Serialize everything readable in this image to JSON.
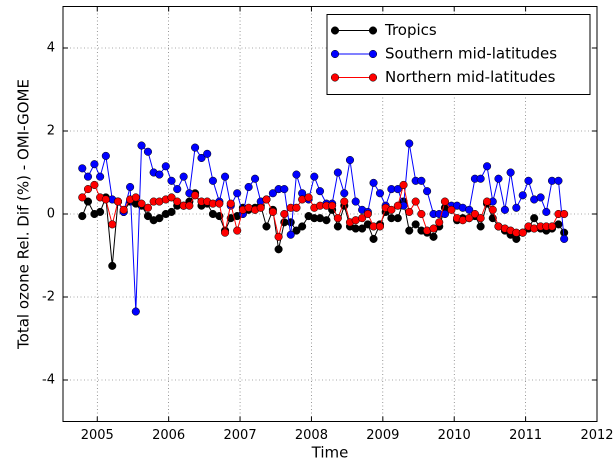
{
  "chart_data": {
    "type": "line",
    "xlabel": "Time",
    "ylabel": "Total ozone Rel. Dif (%) - OMI-GOME",
    "x": [
      2004.79,
      2004.87,
      2004.96,
      2005.04,
      2005.12,
      2005.21,
      2005.29,
      2005.37,
      2005.46,
      2005.54,
      2005.62,
      2005.71,
      2005.79,
      2005.87,
      2005.96,
      2006.04,
      2006.12,
      2006.21,
      2006.29,
      2006.37,
      2006.46,
      2006.54,
      2006.62,
      2006.71,
      2006.79,
      2006.87,
      2006.96,
      2007.04,
      2007.12,
      2007.21,
      2007.29,
      2007.37,
      2007.46,
      2007.54,
      2007.62,
      2007.71,
      2007.79,
      2007.87,
      2007.96,
      2008.04,
      2008.12,
      2008.21,
      2008.29,
      2008.37,
      2008.46,
      2008.54,
      2008.62,
      2008.71,
      2008.79,
      2008.87,
      2008.96,
      2009.04,
      2009.12,
      2009.21,
      2009.29,
      2009.37,
      2009.46,
      2009.54,
      2009.62,
      2009.71,
      2009.79,
      2009.87,
      2009.96,
      2010.04,
      2010.12,
      2010.21,
      2010.29,
      2010.37,
      2010.46,
      2010.54,
      2010.62,
      2010.71,
      2010.79,
      2010.87,
      2010.96,
      2011.04,
      2011.12,
      2011.21,
      2011.29,
      2011.37,
      2011.46,
      2011.54
    ],
    "series": [
      {
        "name": "Tropics",
        "color": "#000000",
        "values": [
          -0.05,
          0.3,
          0.0,
          0.05,
          0.4,
          -1.25,
          0.3,
          0.05,
          0.3,
          0.25,
          0.2,
          -0.05,
          -0.15,
          -0.1,
          0.0,
          0.05,
          0.2,
          0.2,
          0.3,
          0.5,
          0.2,
          0.25,
          0.0,
          -0.05,
          -0.4,
          -0.1,
          -0.05,
          0.15,
          0.1,
          0.15,
          0.2,
          -0.3,
          0.1,
          -0.85,
          -0.2,
          -0.2,
          -0.4,
          -0.3,
          -0.05,
          -0.1,
          -0.1,
          -0.15,
          0.1,
          -0.3,
          0.2,
          -0.3,
          -0.35,
          -0.35,
          -0.25,
          -0.6,
          -0.25,
          0.05,
          -0.1,
          -0.1,
          0.3,
          -0.4,
          -0.25,
          -0.4,
          -0.45,
          -0.55,
          -0.3,
          0.15,
          0.15,
          -0.15,
          -0.1,
          -0.1,
          -0.05,
          -0.3,
          0.25,
          -0.1,
          -0.3,
          -0.4,
          -0.5,
          -0.6,
          -0.45,
          -0.35,
          -0.1,
          -0.35,
          -0.4,
          -0.35,
          -0.25,
          -0.45
        ]
      },
      {
        "name": "Southern mid-latitudes",
        "color": "#0000ff",
        "values": [
          1.1,
          0.9,
          1.2,
          0.9,
          1.4,
          0.35,
          0.3,
          0.05,
          0.65,
          -2.35,
          1.65,
          1.5,
          1.0,
          0.95,
          1.15,
          0.8,
          0.6,
          0.9,
          0.5,
          1.6,
          1.35,
          1.45,
          0.8,
          0.3,
          0.9,
          0.2,
          0.5,
          0.0,
          0.65,
          0.85,
          0.3,
          0.35,
          0.5,
          0.6,
          0.6,
          -0.5,
          0.95,
          0.5,
          0.35,
          0.9,
          0.55,
          0.25,
          0.25,
          1.0,
          0.5,
          1.3,
          0.3,
          0.1,
          0.05,
          0.75,
          0.5,
          0.2,
          0.6,
          0.6,
          0.2,
          1.7,
          0.8,
          0.8,
          0.55,
          0.0,
          0.0,
          0.0,
          0.2,
          0.2,
          0.15,
          0.1,
          0.85,
          0.85,
          1.15,
          0.3,
          0.85,
          0.1,
          1.0,
          0.15,
          0.45,
          0.8,
          0.35,
          0.4,
          0.05,
          0.8,
          0.8,
          -0.6
        ]
      },
      {
        "name": "Northern mid-latitudes",
        "color": "#ff0000",
        "values": [
          0.4,
          0.6,
          0.7,
          0.4,
          0.35,
          -0.25,
          0.3,
          0.1,
          0.35,
          0.4,
          0.25,
          0.15,
          0.3,
          0.3,
          0.35,
          0.4,
          0.3,
          0.2,
          0.2,
          0.45,
          0.3,
          0.3,
          0.25,
          0.25,
          -0.45,
          0.25,
          -0.4,
          0.1,
          0.15,
          0.1,
          0.15,
          0.35,
          0.05,
          -0.55,
          0.0,
          0.15,
          0.15,
          0.35,
          0.4,
          0.15,
          0.2,
          0.2,
          0.2,
          -0.1,
          0.3,
          -0.2,
          -0.15,
          -0.1,
          0.0,
          -0.3,
          -0.3,
          0.15,
          0.1,
          0.2,
          0.7,
          0.05,
          0.3,
          0.0,
          -0.4,
          -0.35,
          -0.2,
          0.3,
          0.1,
          -0.1,
          -0.15,
          -0.1,
          0.0,
          -0.1,
          0.3,
          0.1,
          -0.3,
          -0.35,
          -0.4,
          -0.45,
          -0.45,
          -0.3,
          -0.35,
          -0.3,
          -0.3,
          -0.3,
          0.0,
          0.0
        ]
      }
    ],
    "xlim": [
      2004.52,
      2012
    ],
    "xticks": [
      2005,
      2006,
      2007,
      2008,
      2009,
      2010,
      2011,
      2012
    ],
    "ylim": [
      -5,
      5
    ],
    "yticks": [
      -4,
      -2,
      0,
      2,
      4
    ],
    "grid": true,
    "legend": "upper right"
  }
}
